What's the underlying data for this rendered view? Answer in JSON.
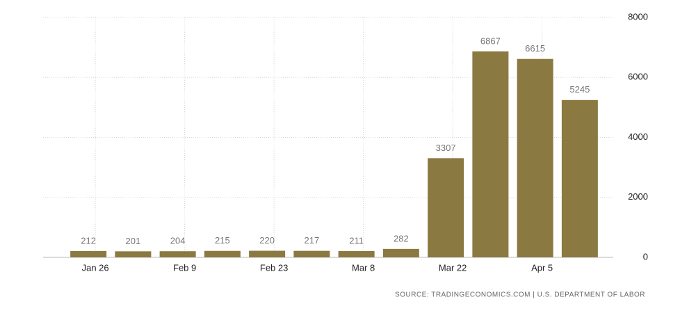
{
  "chart_data": {
    "type": "bar",
    "categories": [
      "Jan 26",
      null,
      "Feb 9",
      null,
      "Feb 23",
      null,
      "Mar 8",
      null,
      "Mar 22",
      null,
      "Apr 5",
      null
    ],
    "values": [
      212,
      201,
      204,
      215,
      220,
      217,
      211,
      282,
      3307,
      6867,
      6615,
      5245
    ],
    "color": "#8b7942",
    "ylim": [
      0,
      8000
    ],
    "yticks": [
      0,
      2000,
      4000,
      6000,
      8000
    ],
    "grid": true,
    "source": "SOURCE: TRADINGECONOMICS.COM | U.S. DEPARTMENT OF LABOR"
  }
}
